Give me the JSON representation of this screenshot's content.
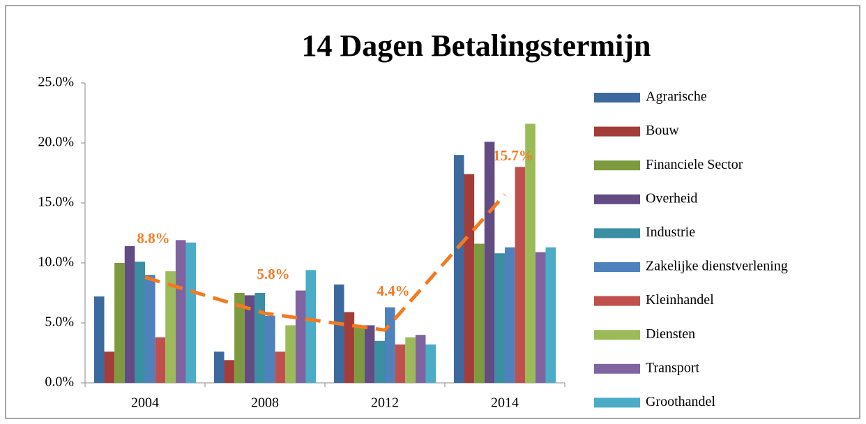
{
  "chart_data": {
    "type": "bar",
    "title": "14 Dagen Betalingstermijn",
    "categories": [
      "2004",
      "2008",
      "2012",
      "2014"
    ],
    "ylim": [
      0,
      25
    ],
    "yticks": [
      {
        "value": 0,
        "label": "0.0%"
      },
      {
        "value": 5,
        "label": "5.0%"
      },
      {
        "value": 10,
        "label": "10.0%"
      },
      {
        "value": 15,
        "label": "15.0%"
      },
      {
        "value": 20,
        "label": "20.0%"
      },
      {
        "value": 25,
        "label": "25.0%"
      }
    ],
    "grid": false,
    "legend": "right",
    "series": [
      {
        "name": "Agrarische",
        "color": "#3d6a9e",
        "values": [
          7.2,
          2.6,
          8.2,
          19.0
        ]
      },
      {
        "name": "Bouw",
        "color": "#a33d3a",
        "values": [
          2.6,
          1.9,
          5.9,
          17.4
        ]
      },
      {
        "name": "Financiele Sector",
        "color": "#7d9a3e",
        "values": [
          10.0,
          7.5,
          4.8,
          11.6
        ]
      },
      {
        "name": "Overheid",
        "color": "#634b84",
        "values": [
          11.4,
          7.3,
          4.8,
          20.1
        ]
      },
      {
        "name": "Industrie",
        "color": "#3a8fa3",
        "values": [
          10.1,
          7.5,
          3.5,
          10.8
        ]
      },
      {
        "name": "Zakelijke dienstverlening",
        "color": "#4f81bd",
        "values": [
          9.0,
          5.6,
          6.3,
          11.3
        ]
      },
      {
        "name": "Kleinhandel",
        "color": "#c0504d",
        "values": [
          3.8,
          2.6,
          3.2,
          18.0
        ]
      },
      {
        "name": "Diensten",
        "color": "#9bbb59",
        "values": [
          9.3,
          4.8,
          3.8,
          21.6
        ]
      },
      {
        "name": "Transport",
        "color": "#8064a2",
        "values": [
          11.9,
          7.7,
          4.0,
          10.9
        ]
      },
      {
        "name": "Groothandel",
        "color": "#4bacc6",
        "values": [
          11.7,
          9.4,
          3.2,
          11.3
        ]
      }
    ],
    "average": {
      "type": "line",
      "color": "#f47a20",
      "dashed": true,
      "values": [
        8.8,
        5.8,
        4.4,
        15.7
      ],
      "value_labels": [
        "8.8%",
        "5.8%",
        "4.4%",
        "15.7%"
      ]
    }
  }
}
